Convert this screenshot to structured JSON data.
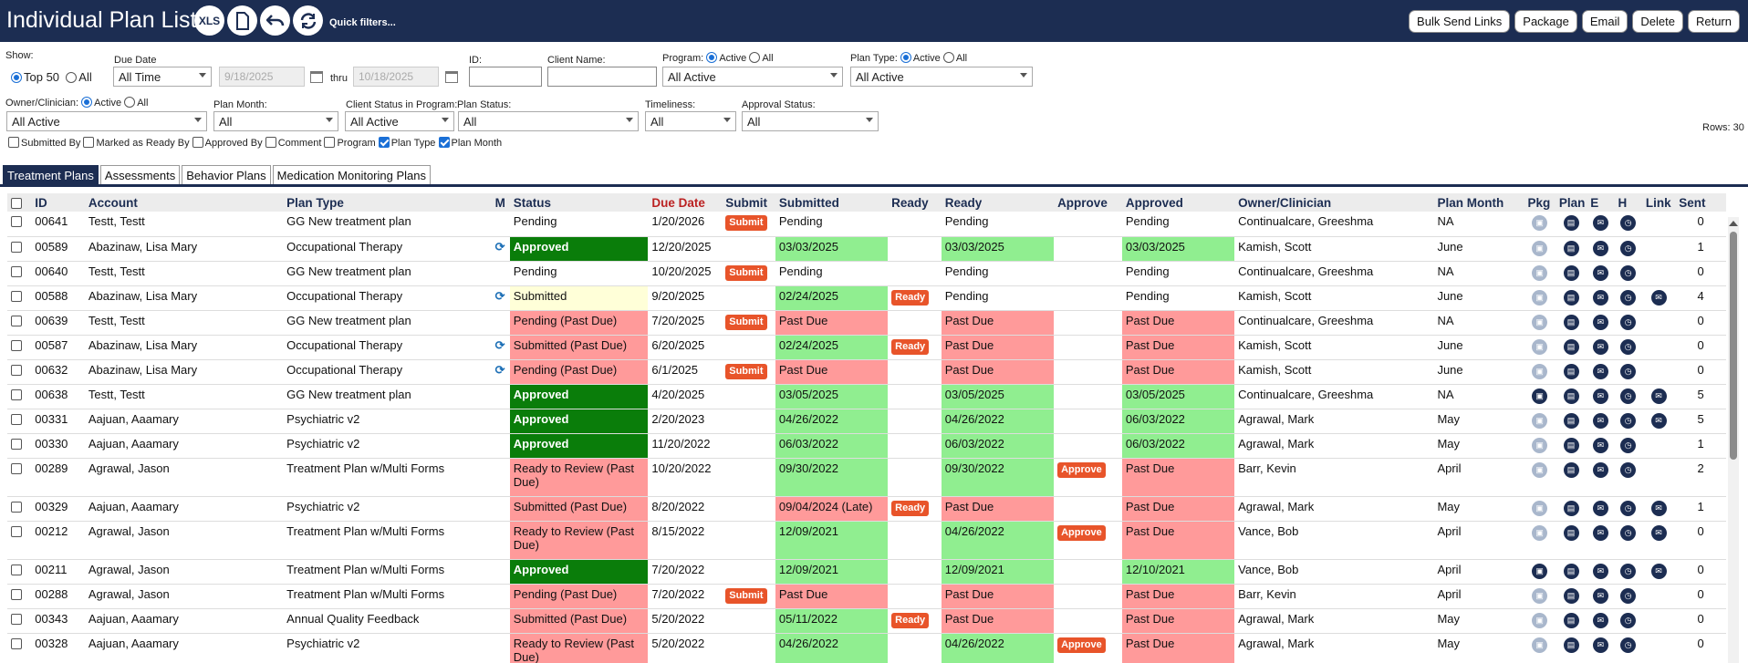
{
  "header": {
    "title": "Individual Plan List",
    "icons": [
      "XLS",
      "document-icon",
      "undo-icon",
      "refresh-icon"
    ],
    "xls_label": "XLS",
    "quick_filters": "Quick filters...",
    "buttons": [
      "Bulk Send Links",
      "Package",
      "Email",
      "Delete",
      "Return"
    ]
  },
  "filters": {
    "show_label": "Show:",
    "top50": "Top 50",
    "all": "All",
    "due_date_label": "Due Date",
    "due_date_value": "All Time",
    "from_date": "9/18/2025",
    "thru": "thru",
    "to_date": "10/18/2025",
    "id_label": "ID:",
    "client_name_label": "Client Name:",
    "program_label": "Program:",
    "active": "Active",
    "all_opt": "All",
    "program_value": "All Active",
    "plan_type_label": "Plan Type:",
    "plan_type_value": "All Active",
    "owner_label": "Owner/Clinician:",
    "owner_value": "All Active",
    "plan_month_label": "Plan Month:",
    "plan_month_value": "All",
    "client_status_label": "Client Status in Program:",
    "client_status_value": "All Active",
    "plan_status_label": "Plan Status:",
    "plan_status_value": "All",
    "timeliness_label": "Timeliness:",
    "timeliness_value": "All",
    "approval_status_label": "Approval Status:",
    "approval_status_value": "All",
    "rows_count": "Rows: 30",
    "columns": [
      {
        "label": "Submitted By",
        "checked": false
      },
      {
        "label": "Marked as Ready By",
        "checked": false
      },
      {
        "label": "Approved By",
        "checked": false
      },
      {
        "label": "Comment",
        "checked": false
      },
      {
        "label": "Program",
        "checked": false
      },
      {
        "label": "Plan Type",
        "checked": true
      },
      {
        "label": "Plan Month",
        "checked": true
      }
    ]
  },
  "tabs": [
    {
      "label": "Treatment Plans",
      "active": true
    },
    {
      "label": "Assessments",
      "active": false
    },
    {
      "label": "Behavior Plans",
      "active": false
    },
    {
      "label": "Medication Monitoring Plans",
      "active": false
    }
  ],
  "table": {
    "headers": [
      "ID",
      "Account",
      "Plan Type",
      "M",
      "Status",
      "Due Date",
      "Submit",
      "Submitted",
      "Ready",
      "Ready",
      "Approve",
      "Approved",
      "Owner/Clinician",
      "Plan Month",
      "Pkg",
      "Plan",
      "E",
      "H",
      "Link",
      "Sent"
    ],
    "rows": [
      {
        "id": "00641",
        "account": "Testt, Testt",
        "plan_type": "GG New treatment plan",
        "m": "",
        "status": "Pending",
        "status_style": "",
        "due": "1/20/2026",
        "submit": "Submit",
        "submitted": "Pending",
        "submitted_style": "",
        "ready_btn": "",
        "ready": "Pending",
        "ready_style": "",
        "approve": "",
        "approved": "Pending",
        "approved_style": "",
        "owner": "Continualcare, Greeshma",
        "month": "NA",
        "pkg": "lt",
        "link": false,
        "sent": "0",
        "tall": false
      },
      {
        "id": "00589",
        "account": "Abazinaw, Lisa Mary",
        "plan_type": "Occupational Therapy",
        "m": "⟳",
        "status": "Approved",
        "status_style": "appr",
        "due": "12/20/2025",
        "submit": "",
        "submitted": "03/03/2025",
        "submitted_style": "grn",
        "ready_btn": "",
        "ready": "03/03/2025",
        "ready_style": "grn",
        "approve": "",
        "approved": "03/03/2025",
        "approved_style": "grn",
        "owner": "Kamish, Scott",
        "month": "June",
        "pkg": "lt",
        "link": false,
        "sent": "1",
        "tall": false
      },
      {
        "id": "00640",
        "account": "Testt, Testt",
        "plan_type": "GG New treatment plan",
        "m": "",
        "status": "Pending",
        "status_style": "",
        "due": "10/20/2025",
        "submit": "Submit",
        "submitted": "Pending",
        "submitted_style": "",
        "ready_btn": "",
        "ready": "Pending",
        "ready_style": "",
        "approve": "",
        "approved": "Pending",
        "approved_style": "",
        "owner": "Continualcare, Greeshma",
        "month": "NA",
        "pkg": "lt",
        "link": false,
        "sent": "0",
        "tall": false
      },
      {
        "id": "00588",
        "account": "Abazinaw, Lisa Mary",
        "plan_type": "Occupational Therapy",
        "m": "⟳",
        "status": "Submitted",
        "status_style": "yel",
        "due": "9/20/2025",
        "submit": "",
        "submitted": "02/24/2025",
        "submitted_style": "grn",
        "ready_btn": "Ready",
        "ready": "Pending",
        "ready_style": "",
        "approve": "",
        "approved": "Pending",
        "approved_style": "",
        "owner": "Kamish, Scott",
        "month": "June",
        "pkg": "lt",
        "link": true,
        "sent": "4",
        "tall": false
      },
      {
        "id": "00639",
        "account": "Testt, Testt",
        "plan_type": "GG New treatment plan",
        "m": "",
        "status": "Pending (Past Due)",
        "status_style": "red",
        "due": "7/20/2025",
        "submit": "Submit",
        "submitted": "Past Due",
        "submitted_style": "red",
        "ready_btn": "",
        "ready": "Past Due",
        "ready_style": "red",
        "approve": "",
        "approved": "Past Due",
        "approved_style": "red",
        "owner": "Continualcare, Greeshma",
        "month": "NA",
        "pkg": "lt",
        "link": false,
        "sent": "0",
        "tall": false
      },
      {
        "id": "00587",
        "account": "Abazinaw, Lisa Mary",
        "plan_type": "Occupational Therapy",
        "m": "⟳",
        "status": "Submitted (Past Due)",
        "status_style": "red",
        "due": "6/20/2025",
        "submit": "",
        "submitted": "02/24/2025",
        "submitted_style": "grn",
        "ready_btn": "Ready",
        "ready": "Past Due",
        "ready_style": "red",
        "approve": "",
        "approved": "Past Due",
        "approved_style": "red",
        "owner": "Kamish, Scott",
        "month": "June",
        "pkg": "lt",
        "link": false,
        "sent": "0",
        "tall": false
      },
      {
        "id": "00632",
        "account": "Abazinaw, Lisa Mary",
        "plan_type": "Occupational Therapy",
        "m": "⟳",
        "status": "Pending (Past Due)",
        "status_style": "red",
        "due": "6/1/2025",
        "submit": "Submit",
        "submitted": "Past Due",
        "submitted_style": "red",
        "ready_btn": "",
        "ready": "Past Due",
        "ready_style": "red",
        "approve": "",
        "approved": "Past Due",
        "approved_style": "red",
        "owner": "Kamish, Scott",
        "month": "June",
        "pkg": "lt",
        "link": false,
        "sent": "0",
        "tall": false
      },
      {
        "id": "00638",
        "account": "Testt, Testt",
        "plan_type": "GG New treatment plan",
        "m": "",
        "status": "Approved",
        "status_style": "appr",
        "due": "4/20/2025",
        "submit": "",
        "submitted": "03/05/2025",
        "submitted_style": "grn",
        "ready_btn": "",
        "ready": "03/05/2025",
        "ready_style": "grn",
        "approve": "",
        "approved": "03/05/2025",
        "approved_style": "grn",
        "owner": "Continualcare, Greeshma",
        "month": "NA",
        "pkg": "dk",
        "link": true,
        "sent": "5",
        "tall": false
      },
      {
        "id": "00331",
        "account": "Aajuan, Aaamary",
        "plan_type": "Psychiatric v2",
        "m": "",
        "status": "Approved",
        "status_style": "appr",
        "due": "2/20/2023",
        "submit": "",
        "submitted": "04/26/2022",
        "submitted_style": "grn",
        "ready_btn": "",
        "ready": "04/26/2022",
        "ready_style": "grn",
        "approve": "",
        "approved": "06/03/2022",
        "approved_style": "grn",
        "owner": "Agrawal, Mark",
        "month": "May",
        "pkg": "lt",
        "link": true,
        "sent": "5",
        "tall": false
      },
      {
        "id": "00330",
        "account": "Aajuan, Aaamary",
        "plan_type": "Psychiatric v2",
        "m": "",
        "status": "Approved",
        "status_style": "appr",
        "due": "11/20/2022",
        "submit": "",
        "submitted": "06/03/2022",
        "submitted_style": "grn",
        "ready_btn": "",
        "ready": "06/03/2022",
        "ready_style": "grn",
        "approve": "",
        "approved": "06/03/2022",
        "approved_style": "grn",
        "owner": "Agrawal, Mark",
        "month": "May",
        "pkg": "lt",
        "link": false,
        "sent": "1",
        "tall": false
      },
      {
        "id": "00289",
        "account": "Agrawal, Jason",
        "plan_type": "Treatment Plan w/Multi Forms",
        "m": "",
        "status": "Ready to Review (Past Due)",
        "status_style": "red",
        "due": "10/20/2022",
        "submit": "",
        "submitted": "09/30/2022",
        "submitted_style": "grn",
        "ready_btn": "",
        "ready": "09/30/2022",
        "ready_style": "grn",
        "approve": "Approve",
        "approved": "Past Due",
        "approved_style": "red",
        "owner": "Barr, Kevin",
        "month": "April",
        "pkg": "lt",
        "link": false,
        "sent": "2",
        "tall": true
      },
      {
        "id": "00329",
        "account": "Aajuan, Aaamary",
        "plan_type": "Psychiatric v2",
        "m": "",
        "status": "Submitted (Past Due)",
        "status_style": "red",
        "due": "8/20/2022",
        "submit": "",
        "submitted": "09/04/2024 (Late)",
        "submitted_style": "red",
        "ready_btn": "Ready",
        "ready": "Past Due",
        "ready_style": "red",
        "approve": "",
        "approved": "Past Due",
        "approved_style": "red",
        "owner": "Agrawal, Mark",
        "month": "May",
        "pkg": "lt",
        "link": true,
        "sent": "1",
        "tall": false
      },
      {
        "id": "00212",
        "account": "Agrawal, Jason",
        "plan_type": "Treatment Plan w/Multi Forms",
        "m": "",
        "status": "Ready to Review (Past Due)",
        "status_style": "red",
        "due": "8/15/2022",
        "submit": "",
        "submitted": "12/09/2021",
        "submitted_style": "grn",
        "ready_btn": "",
        "ready": "04/26/2022",
        "ready_style": "grn",
        "approve": "Approve",
        "approved": "Past Due",
        "approved_style": "red",
        "owner": "Vance, Bob",
        "month": "April",
        "pkg": "lt",
        "link": true,
        "sent": "0",
        "tall": true
      },
      {
        "id": "00211",
        "account": "Agrawal, Jason",
        "plan_type": "Treatment Plan w/Multi Forms",
        "m": "",
        "status": "Approved",
        "status_style": "appr",
        "due": "7/20/2022",
        "submit": "",
        "submitted": "12/09/2021",
        "submitted_style": "grn",
        "ready_btn": "",
        "ready": "12/09/2021",
        "ready_style": "grn",
        "approve": "",
        "approved": "12/10/2021",
        "approved_style": "grn",
        "owner": "Vance, Bob",
        "month": "April",
        "pkg": "dk",
        "link": true,
        "sent": "0",
        "tall": false
      },
      {
        "id": "00288",
        "account": "Agrawal, Jason",
        "plan_type": "Treatment Plan w/Multi Forms",
        "m": "",
        "status": "Pending (Past Due)",
        "status_style": "red",
        "due": "7/20/2022",
        "submit": "Submit",
        "submitted": "Past Due",
        "submitted_style": "red",
        "ready_btn": "",
        "ready": "Past Due",
        "ready_style": "red",
        "approve": "",
        "approved": "Past Due",
        "approved_style": "red",
        "owner": "Barr, Kevin",
        "month": "April",
        "pkg": "lt",
        "link": false,
        "sent": "0",
        "tall": false
      },
      {
        "id": "00343",
        "account": "Aajuan, Aaamary",
        "plan_type": "Annual Quality Feedback",
        "m": "",
        "status": "Submitted (Past Due)",
        "status_style": "red",
        "due": "5/20/2022",
        "submit": "",
        "submitted": "05/11/2022",
        "submitted_style": "grn",
        "ready_btn": "Ready",
        "ready": "Past Due",
        "ready_style": "red",
        "approve": "",
        "approved": "Past Due",
        "approved_style": "red",
        "owner": "Agrawal, Mark",
        "month": "May",
        "pkg": "lt",
        "link": false,
        "sent": "0",
        "tall": false
      },
      {
        "id": "00328",
        "account": "Aajuan, Aaamary",
        "plan_type": "Psychiatric v2",
        "m": "",
        "status": "Ready to Review (Past Due)",
        "status_style": "red",
        "due": "5/20/2022",
        "submit": "",
        "submitted": "04/26/2022",
        "submitted_style": "grn",
        "ready_btn": "",
        "ready": "04/26/2022",
        "ready_style": "grn",
        "approve": "Approve",
        "approved": "Past Due",
        "approved_style": "red",
        "owner": "Agrawal, Mark",
        "month": "May",
        "pkg": "lt",
        "link": false,
        "sent": "0",
        "tall": true
      }
    ]
  }
}
